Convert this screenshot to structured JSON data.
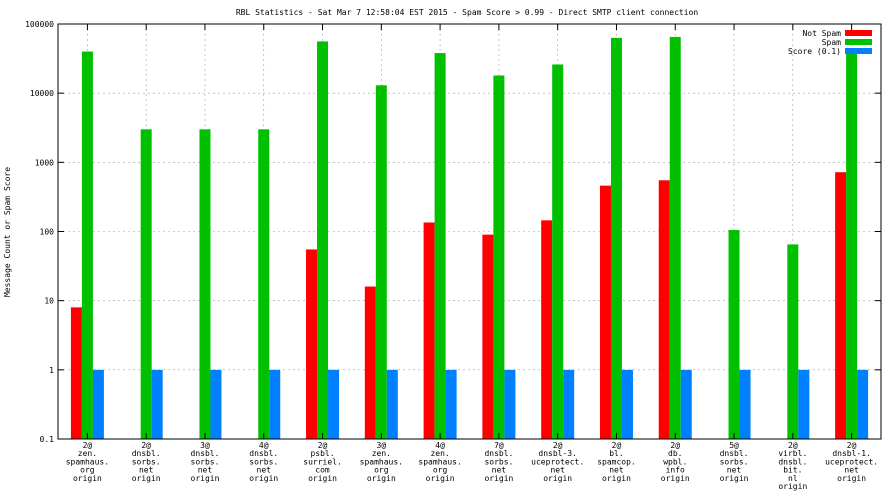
{
  "chart_data": {
    "type": "bar",
    "title": "RBL Statistics - Sat Mar  7 12:58:04 EST 2015 - Spam Score > 0.99 - Direct SMTP client connection",
    "xlabel": "",
    "ylabel": "Message Count or Spam Score",
    "yscale": "log",
    "ylim": [
      0.1,
      100000
    ],
    "yticks": [
      "0.1",
      "1",
      "10",
      "100",
      "1000",
      "10000",
      "100000"
    ],
    "grid": true,
    "legend_position": "top-right",
    "categories": [
      [
        "2@",
        "zen.",
        "spamhaus.",
        "org",
        "origin"
      ],
      [
        "2@",
        "dnsbl.",
        "sorbs.",
        "net",
        "origin"
      ],
      [
        "3@",
        "dnsbl.",
        "sorbs.",
        "net",
        "origin"
      ],
      [
        "4@",
        "dnsbl.",
        "sorbs.",
        "net",
        "origin"
      ],
      [
        "2@",
        "psbl.",
        "surriel.",
        "com",
        "origin"
      ],
      [
        "3@",
        "zen.",
        "spamhaus.",
        "org",
        "origin"
      ],
      [
        "4@",
        "zen.",
        "spamhaus.",
        "org",
        "origin"
      ],
      [
        "7@",
        "dnsbl.",
        "sorbs.",
        "net",
        "origin"
      ],
      [
        "2@",
        "dnsbl-3.",
        "uceprotect.",
        "net",
        "origin"
      ],
      [
        "2@",
        "bl.",
        "spamcop.",
        "net",
        "origin"
      ],
      [
        "2@",
        "db.",
        "wpbl.",
        "info",
        "origin"
      ],
      [
        "5@",
        "dnsbl.",
        "sorbs.",
        "net",
        "origin"
      ],
      [
        "2@",
        "virbl.",
        "dnsbl.",
        "bit.",
        "nl",
        "origin"
      ],
      [
        "2@",
        "dnsbl-1.",
        "uceprotect.",
        "net",
        "origin"
      ]
    ],
    "series": [
      {
        "name": "Not Spam",
        "color": "#ff0000",
        "values": [
          8,
          null,
          null,
          null,
          55,
          16,
          135,
          90,
          145,
          460,
          550,
          null,
          null,
          720
        ]
      },
      {
        "name": "Spam",
        "color": "#00c000",
        "values": [
          40000,
          3000,
          3000,
          3000,
          56000,
          13000,
          38000,
          18000,
          26000,
          63000,
          65000,
          105,
          65,
          45000
        ]
      },
      {
        "name": "Score (0.1)",
        "color": "#0080ff",
        "values": [
          1,
          1,
          1,
          1,
          1,
          1,
          1,
          1,
          1,
          1,
          1,
          1,
          1,
          1
        ]
      }
    ]
  }
}
